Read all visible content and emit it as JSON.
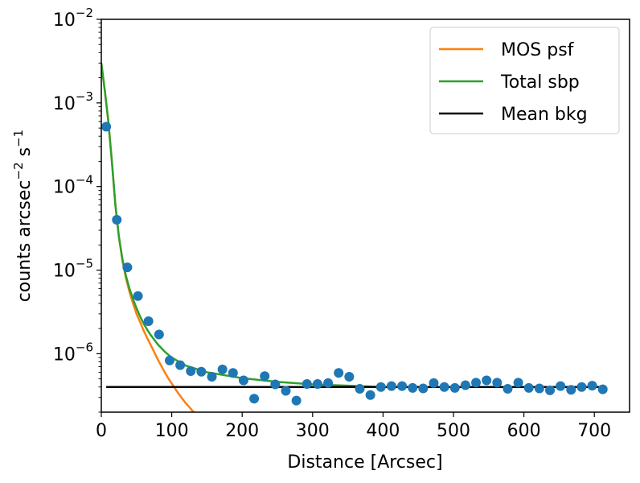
{
  "chart_data": {
    "type": "scatter",
    "xlabel": "Distance [Arcsec]",
    "ylabel_base": "counts arcsec",
    "ylabel_exp1": "−2",
    "ylabel_mid": " s",
    "ylabel_exp2": "−1",
    "xlim": [
      0,
      750
    ],
    "ylim": [
      2e-07,
      0.01
    ],
    "yscale": "log",
    "x_ticks": [
      0,
      100,
      200,
      300,
      400,
      500,
      600,
      700
    ],
    "x_tick_labels": [
      "0",
      "100",
      "200",
      "300",
      "400",
      "500",
      "600",
      "700"
    ],
    "y_ticks": [
      {
        "value": 1e-06,
        "base": "10",
        "exp": "−6"
      },
      {
        "value": 1e-05,
        "base": "10",
        "exp": "−5"
      },
      {
        "value": 0.0001,
        "base": "10",
        "exp": "−4"
      },
      {
        "value": 0.001,
        "base": "10",
        "exp": "−3"
      },
      {
        "value": 0.01,
        "base": "10",
        "exp": "−2"
      }
    ],
    "legend_position": "top-right",
    "series": [
      {
        "name": "MOS psf",
        "kind": "line",
        "color": "#ff7f0e",
        "x": [
          0,
          5,
          10,
          15,
          20,
          25,
          30,
          35,
          40,
          45,
          50,
          55,
          60,
          65,
          70,
          75,
          80,
          85,
          90,
          95,
          100,
          105,
          110,
          115,
          120,
          125,
          130,
          135
        ],
        "y": [
          0.003,
          0.0014,
          0.0006,
          0.0002,
          6e-05,
          2.5e-05,
          1.3e-05,
          8e-06,
          5.5e-06,
          4e-06,
          3e-06,
          2.4e-06,
          1.9e-06,
          1.55e-06,
          1.28e-06,
          1.05e-06,
          8.6e-07,
          7.2e-07,
          6e-07,
          5.1e-07,
          4.4e-07,
          3.8e-07,
          3.3e-07,
          2.9e-07,
          2.55e-07,
          2.3e-07,
          2.05e-07,
          1.9e-07
        ]
      },
      {
        "name": "Total sbp",
        "kind": "line",
        "color": "#2ca02c",
        "x": [
          0,
          5,
          10,
          15,
          20,
          25,
          30,
          35,
          40,
          45,
          50,
          55,
          60,
          65,
          70,
          80,
          90,
          100,
          120,
          150,
          200,
          250,
          300,
          350,
          380,
          400,
          450,
          500,
          550,
          600,
          650,
          712
        ],
        "y": [
          0.003,
          0.0014,
          0.0006,
          0.0002,
          6e-05,
          2.5e-05,
          1.35e-05,
          8.5e-06,
          6e-06,
          4.5e-06,
          3.5e-06,
          2.8e-06,
          2.3e-06,
          1.95e-06,
          1.68e-06,
          1.3e-06,
          1.06e-06,
          9e-07,
          7.2e-07,
          6e-07,
          5.1e-07,
          4.6e-07,
          4.3e-07,
          4.15e-07,
          4.05e-07,
          4e-07,
          4e-07,
          4e-07,
          4e-07,
          4e-07,
          4e-07,
          4e-07
        ]
      },
      {
        "name": "Mean bkg",
        "kind": "line",
        "color": "#000000",
        "x": [
          7,
          712
        ],
        "y": [
          4e-07,
          4e-07
        ]
      },
      {
        "name": "data",
        "kind": "scatter",
        "color": "#1f77b4",
        "x": [
          7,
          22,
          37,
          52,
          67,
          82,
          97,
          112,
          127,
          142,
          157,
          172,
          187,
          202,
          217,
          232,
          247,
          262,
          277,
          292,
          307,
          322,
          337,
          352,
          367,
          382,
          397,
          412,
          427,
          442,
          457,
          472,
          487,
          502,
          517,
          532,
          547,
          562,
          577,
          592,
          607,
          622,
          637,
          652,
          667,
          682,
          697,
          712
        ],
        "y": [
          0.00052,
          4e-05,
          1.08e-05,
          4.9e-06,
          2.45e-06,
          1.7e-06,
          8.3e-07,
          7.3e-07,
          6.2e-07,
          6.1e-07,
          5.3e-07,
          6.5e-07,
          5.9e-07,
          4.8e-07,
          2.9e-07,
          5.4e-07,
          4.3e-07,
          3.6e-07,
          2.75e-07,
          4.35e-07,
          4.35e-07,
          4.45e-07,
          5.9e-07,
          5.3e-07,
          3.8e-07,
          3.2e-07,
          4e-07,
          4.1e-07,
          4.1e-07,
          3.9e-07,
          3.85e-07,
          4.45e-07,
          4e-07,
          3.9e-07,
          4.2e-07,
          4.5e-07,
          4.8e-07,
          4.5e-07,
          3.8e-07,
          4.5e-07,
          3.9e-07,
          3.85e-07,
          3.65e-07,
          4.1e-07,
          3.7e-07,
          4e-07,
          4.15e-07,
          3.75e-07
        ]
      }
    ],
    "legend": [
      {
        "label": "MOS psf",
        "color": "#ff7f0e"
      },
      {
        "label": "Total sbp",
        "color": "#2ca02c"
      },
      {
        "label": "Mean bkg",
        "color": "#000000"
      }
    ]
  }
}
